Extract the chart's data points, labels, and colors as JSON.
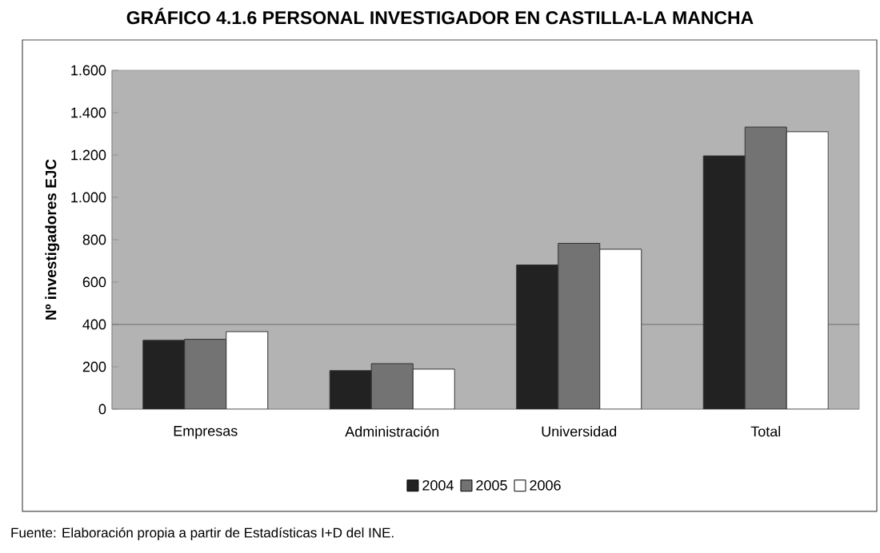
{
  "chart_data": {
    "type": "bar",
    "title": "GRÁFICO 4.1.6 PERSONAL INVESTIGADOR EN CASTILLA-LA MANCHA",
    "ylabel": "Nº investigadores EJC",
    "categories": [
      "Empresas",
      "Administración",
      "Universidad",
      "Total"
    ],
    "series": [
      {
        "name": "2004",
        "color": "#222222",
        "values": [
          325,
          182,
          681,
          1196
        ]
      },
      {
        "name": "2005",
        "color": "#737373",
        "values": [
          330,
          215,
          783,
          1332
        ]
      },
      {
        "name": "2006",
        "color": "#ffffff",
        "values": [
          366,
          189,
          755,
          1310
        ]
      }
    ],
    "ylim": [
      0,
      1600
    ],
    "yticks": [
      {
        "value": 0,
        "label": "0"
      },
      {
        "value": 200,
        "label": "200"
      },
      {
        "value": 400,
        "label": "400"
      },
      {
        "value": 600,
        "label": "600"
      },
      {
        "value": 800,
        "label": "800"
      },
      {
        "value": 1000,
        "label": "1.000"
      },
      {
        "value": 1200,
        "label": "1.200"
      },
      {
        "value": 1400,
        "label": "1.400"
      },
      {
        "value": 1600,
        "label": "1.600"
      }
    ],
    "ref_lines": [
      {
        "axis": "y",
        "value": 400,
        "color": "#6e6e6e"
      }
    ],
    "legend": "bottom",
    "annotations": [
      "Fuente: Elaboración propia a partir de Estadísticas I+D del INE."
    ]
  }
}
